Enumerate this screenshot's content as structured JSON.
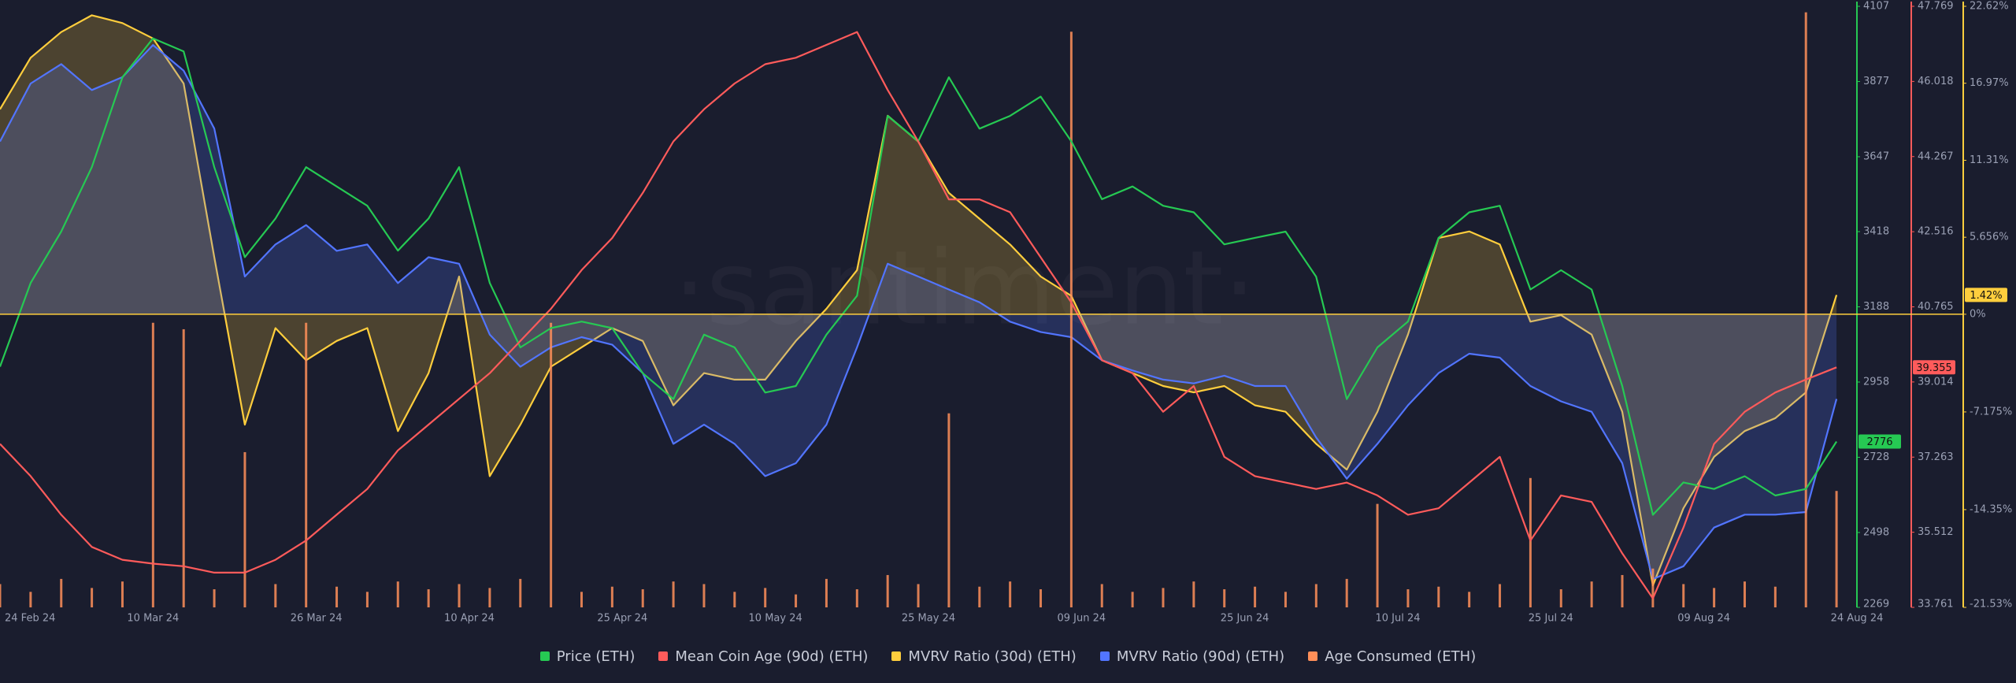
{
  "chart_data": {
    "type": "line",
    "watermark": "·santiment·",
    "x": [
      "2024-02-24",
      "2024-02-27",
      "2024-03-01",
      "2024-03-04",
      "2024-03-07",
      "2024-03-10",
      "2024-03-13",
      "2024-03-16",
      "2024-03-19",
      "2024-03-22",
      "2024-03-25",
      "2024-03-28",
      "2024-03-31",
      "2024-04-03",
      "2024-04-06",
      "2024-04-09",
      "2024-04-12",
      "2024-04-15",
      "2024-04-18",
      "2024-04-21",
      "2024-04-24",
      "2024-04-27",
      "2024-04-30",
      "2024-05-03",
      "2024-05-06",
      "2024-05-09",
      "2024-05-12",
      "2024-05-15",
      "2024-05-18",
      "2024-05-21",
      "2024-05-24",
      "2024-05-27",
      "2024-05-30",
      "2024-06-02",
      "2024-06-05",
      "2024-06-08",
      "2024-06-11",
      "2024-06-14",
      "2024-06-17",
      "2024-06-20",
      "2024-06-23",
      "2024-06-26",
      "2024-06-29",
      "2024-07-02",
      "2024-07-05",
      "2024-07-08",
      "2024-07-11",
      "2024-07-14",
      "2024-07-17",
      "2024-07-20",
      "2024-07-23",
      "2024-07-26",
      "2024-07-29",
      "2024-08-01",
      "2024-08-04",
      "2024-08-07",
      "2024-08-10",
      "2024-08-13",
      "2024-08-16",
      "2024-08-19",
      "2024-08-22"
    ],
    "xlim": [
      "2024-02-24",
      "2024-08-24"
    ],
    "xticks": [
      {
        "value": "2024-02-24",
        "label": "24 Feb 24"
      },
      {
        "value": "2024-03-10",
        "label": "10 Mar 24"
      },
      {
        "value": "2024-03-26",
        "label": "26 Mar 24"
      },
      {
        "value": "2024-04-10",
        "label": "10 Apr 24"
      },
      {
        "value": "2024-04-25",
        "label": "25 Apr 24"
      },
      {
        "value": "2024-05-10",
        "label": "10 May 24"
      },
      {
        "value": "2024-05-25",
        "label": "25 May 24"
      },
      {
        "value": "2024-06-09",
        "label": "09 Jun 24"
      },
      {
        "value": "2024-06-25",
        "label": "25 Jun 24"
      },
      {
        "value": "2024-07-10",
        "label": "10 Jul 24"
      },
      {
        "value": "2024-07-25",
        "label": "25 Jul 24"
      },
      {
        "value": "2024-08-09",
        "label": "09 Aug 24"
      },
      {
        "value": "2024-08-24",
        "label": "24 Aug 24"
      }
    ],
    "ylim": [
      2269,
      4107
    ],
    "yticks": [
      4107,
      3877,
      3647,
      3418,
      3188,
      2958,
      2728,
      2498,
      2269
    ],
    "y2lim": [
      33.761,
      47.769
    ],
    "y2ticks": [
      47.769,
      46.018,
      44.267,
      42.516,
      40.765,
      39.014,
      37.263,
      35.512,
      33.761
    ],
    "y3lim": [
      -21.53,
      22.62
    ],
    "y3ticks": [
      {
        "value": 22.62,
        "label": "22.62%"
      },
      {
        "value": 16.97,
        "label": "16.97%"
      },
      {
        "value": 11.31,
        "label": "11.31%"
      },
      {
        "value": 5.656,
        "label": "5.656%"
      },
      {
        "value": 0,
        "label": "0%"
      },
      {
        "value": -7.175,
        "label": "-7.175%"
      },
      {
        "value": -14.35,
        "label": "-14.35%"
      },
      {
        "value": -21.53,
        "label": "-21.53%"
      }
    ],
    "zero_line": true,
    "series": [
      {
        "name": "Price (ETH)",
        "type": "line",
        "axis": "y",
        "color": "#26c953",
        "end_label": "2776",
        "values": [
          3005,
          3261,
          3418,
          3615,
          3890,
          4009,
          3969,
          3615,
          3340,
          3458,
          3615,
          3556,
          3497,
          3360,
          3458,
          3615,
          3261,
          3064,
          3123,
          3143,
          3123,
          2985,
          2906,
          3103,
          3064,
          2926,
          2946,
          3103,
          3222,
          3772,
          3694,
          3890,
          3733,
          3772,
          3831,
          3694,
          3517,
          3556,
          3497,
          3477,
          3379,
          3399,
          3418,
          3280,
          2906,
          3064,
          3143,
          3399,
          3477,
          3497,
          3241,
          3300,
          3241,
          2946,
          2552,
          2651,
          2631,
          2670,
          2611,
          2631,
          2776
        ]
      },
      {
        "name": "Mean Coin Age (90d) (ETH)",
        "type": "line",
        "axis": "y2",
        "color": "#ff5b5b",
        "end_label": "39.355",
        "values": [
          37.57,
          36.82,
          35.92,
          35.17,
          34.87,
          34.78,
          34.72,
          34.57,
          34.57,
          34.87,
          35.32,
          35.92,
          36.52,
          37.42,
          38.02,
          38.62,
          39.22,
          39.97,
          40.72,
          41.62,
          42.37,
          43.42,
          44.62,
          45.37,
          45.97,
          46.42,
          46.57,
          46.87,
          47.17,
          45.82,
          44.62,
          43.27,
          43.27,
          42.97,
          41.92,
          40.87,
          39.52,
          39.22,
          38.32,
          38.92,
          37.27,
          36.82,
          36.67,
          36.52,
          36.67,
          36.37,
          35.92,
          36.07,
          36.67,
          37.27,
          35.32,
          36.37,
          36.22,
          35.02,
          33.97,
          35.62,
          37.57,
          38.32,
          38.77,
          39.07,
          39.355
        ]
      },
      {
        "name": "MVRV Ratio (30d) (ETH)",
        "type": "area",
        "axis": "y3",
        "color": "#ffce3d",
        "end_label": "1.42%",
        "values": [
          15.06,
          18.84,
          20.73,
          21.96,
          21.39,
          20.26,
          16.95,
          4.19,
          -8.11,
          -1.02,
          -3.38,
          -1.96,
          -1.02,
          -8.58,
          -4.32,
          2.77,
          -11.89,
          -8.11,
          -3.85,
          -2.43,
          -1.02,
          -1.96,
          -6.69,
          -4.32,
          -4.8,
          -4.8,
          -1.96,
          0.4,
          3.24,
          14.58,
          12.69,
          8.91,
          7.02,
          5.13,
          2.77,
          1.35,
          -3.38,
          -4.32,
          -5.27,
          -5.74,
          -5.27,
          -6.69,
          -7.16,
          -9.52,
          -11.41,
          -7.16,
          -1.49,
          5.6,
          6.08,
          5.13,
          -0.54,
          -0.07,
          -1.49,
          -7.16,
          -19.92,
          -14.25,
          -10.47,
          -8.58,
          -7.63,
          -5.74,
          1.42
        ]
      },
      {
        "name": "MVRV Ratio (90d) (ETH)",
        "type": "area",
        "axis": "y3",
        "color": "#5275ff",
        "values": [
          12.69,
          16.95,
          18.37,
          16.47,
          17.42,
          19.78,
          17.89,
          13.64,
          2.77,
          5.13,
          6.55,
          4.66,
          5.13,
          2.29,
          4.19,
          3.71,
          -1.49,
          -3.85,
          -2.43,
          -1.68,
          -2.24,
          -4.32,
          -9.52,
          -8.11,
          -9.52,
          -11.89,
          -10.94,
          -8.11,
          -2.43,
          3.71,
          2.77,
          1.82,
          0.88,
          -0.54,
          -1.3,
          -1.68,
          -3.38,
          -4.13,
          -4.8,
          -5.08,
          -4.51,
          -5.27,
          -5.27,
          -9.05,
          -12.08,
          -9.52,
          -6.69,
          -4.32,
          -2.9,
          -3.19,
          -5.27,
          -6.4,
          -7.16,
          -10.94,
          -19.45,
          -18.51,
          -15.67,
          -14.72,
          -14.72,
          -14.53,
          -6.22
        ]
      },
      {
        "name": "Age Consumed (ETH)",
        "type": "bar",
        "color": "#ff8f59",
        "values": [
          18,
          12,
          22,
          15,
          20,
          220,
          215,
          14,
          120,
          18,
          220,
          16,
          12,
          20,
          14,
          18,
          15,
          22,
          220,
          12,
          16,
          14,
          20,
          18,
          12,
          15,
          10,
          22,
          14,
          25,
          18,
          150,
          16,
          20,
          14,
          445,
          18,
          12,
          15,
          20,
          14,
          16,
          12,
          18,
          22,
          80,
          14,
          16,
          12,
          18,
          100,
          14,
          20,
          25,
          30,
          18,
          15,
          20,
          16,
          460,
          90
        ]
      }
    ]
  }
}
